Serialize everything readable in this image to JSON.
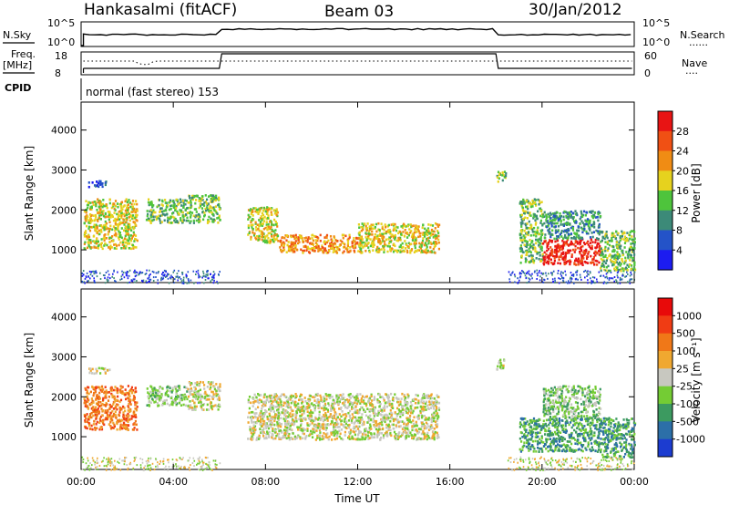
{
  "header": {
    "station": "Hankasalmi (fitACF)",
    "beam": "Beam 03",
    "date": "30/Jan/2012"
  },
  "top_panels": {
    "nsky_label": "N.Sky",
    "nsearch_label": "N.Search",
    "nsky_ticks": [
      "10^5",
      "10^0"
    ],
    "nsearch_ticks": [
      "10^5",
      "10^0"
    ],
    "freq_label": "Freq.",
    "freq_unit": "[MHz]",
    "freq_ticks": [
      "18",
      "8"
    ],
    "nave_label": "Nave",
    "nave_ticks": [
      "60",
      "0"
    ],
    "cpid_label": "CPID",
    "cpid_text": "normal (fast stereo) 153",
    "dotted_legend": "......",
    "nave_dotted": "...."
  },
  "chart_data": [
    {
      "type": "heatmap",
      "name": "power-panel",
      "ylabel": "Slant Range [km]",
      "xlabel": "",
      "x_ticks": [
        "00:00",
        "04:00",
        "08:00",
        "12:00",
        "16:00",
        "20:00",
        "00:00"
      ],
      "x_range_hours": [
        0,
        24
      ],
      "y_ticks": [
        "1000",
        "2000",
        "3000",
        "4000"
      ],
      "y_range_km": [
        180,
        4700
      ],
      "colorbar": {
        "label": "Power [dB]",
        "ticks": [
          "4",
          "8",
          "12",
          "16",
          "20",
          "24",
          "28"
        ],
        "colors": [
          "#1c1cf0",
          "#2453c8",
          "#3c8a78",
          "#4ec43c",
          "#e6d21e",
          "#f08c14",
          "#f05014",
          "#e81414"
        ]
      },
      "scatter_regions": [
        {
          "t0": 0.1,
          "t1": 2.4,
          "r0": 1050,
          "r1": 2300,
          "level": 4
        },
        {
          "t0": 0.3,
          "t1": 1.2,
          "r0": 2600,
          "r1": 2750,
          "level": 1
        },
        {
          "t0": 2.8,
          "t1": 4.6,
          "r0": 1700,
          "r1": 2300,
          "level": 3
        },
        {
          "t0": 4.6,
          "t1": 6.0,
          "r0": 1700,
          "r1": 2400,
          "level": 3
        },
        {
          "t0": 7.2,
          "t1": 8.5,
          "r0": 1200,
          "r1": 2100,
          "level": 4
        },
        {
          "t0": 8.5,
          "t1": 12.0,
          "r0": 950,
          "r1": 1400,
          "level": 5
        },
        {
          "t0": 12.0,
          "t1": 15.5,
          "r0": 950,
          "r1": 1700,
          "level": 4
        },
        {
          "t0": 18.0,
          "t1": 18.4,
          "r0": 2700,
          "r1": 3000,
          "level": 3
        },
        {
          "t0": 19.0,
          "t1": 20.0,
          "r0": 700,
          "r1": 2300,
          "level": 3
        },
        {
          "t0": 20.0,
          "t1": 22.5,
          "r0": 650,
          "r1": 1300,
          "level": 7
        },
        {
          "t0": 20.0,
          "t1": 22.5,
          "r0": 1300,
          "r1": 2000,
          "level": 2
        },
        {
          "t0": 22.5,
          "t1": 24.0,
          "r0": 500,
          "r1": 1500,
          "level": 3
        }
      ]
    },
    {
      "type": "heatmap",
      "name": "velocity-panel",
      "ylabel": "Slant Range [km]",
      "xlabel": "Time UT",
      "x_ticks": [
        "00:00",
        "04:00",
        "08:00",
        "12:00",
        "16:00",
        "20:00",
        "00:00"
      ],
      "x_range_hours": [
        0,
        24
      ],
      "y_ticks": [
        "1000",
        "2000",
        "3000",
        "4000"
      ],
      "y_range_km": [
        180,
        4700
      ],
      "colorbar": {
        "label": "Velocity [m s⁻¹]",
        "ticks": [
          "1000",
          "500",
          "100",
          "25",
          "-25",
          "-100",
          "-500",
          "-1000"
        ],
        "colors": [
          "#1c3cd0",
          "#2c6fa8",
          "#3c9a60",
          "#74cc34",
          "#c8c8c0",
          "#f0a830",
          "#f07818",
          "#f03c14",
          "#e80a0a"
        ]
      },
      "scatter_regions": [
        {
          "t0": 0.1,
          "t1": 2.4,
          "r0": 1200,
          "r1": 2300,
          "level": 6
        },
        {
          "t0": 0.3,
          "t1": 1.2,
          "r0": 2600,
          "r1": 2750,
          "level": 4
        },
        {
          "t0": 2.8,
          "t1": 4.6,
          "r0": 1800,
          "r1": 2300,
          "level": 3
        },
        {
          "t0": 4.6,
          "t1": 6.0,
          "r0": 1700,
          "r1": 2400,
          "level": 4
        },
        {
          "t0": 7.2,
          "t1": 15.5,
          "r0": 950,
          "r1": 2100,
          "level": 4
        },
        {
          "t0": 18.0,
          "t1": 18.4,
          "r0": 2700,
          "r1": 3000,
          "level": 4
        },
        {
          "t0": 19.0,
          "t1": 22.5,
          "r0": 650,
          "r1": 1500,
          "level": 2
        },
        {
          "t0": 20.0,
          "t1": 22.5,
          "r0": 1500,
          "r1": 2300,
          "level": 3
        },
        {
          "t0": 22.5,
          "t1": 24.0,
          "r0": 500,
          "r1": 1500,
          "level": 2
        }
      ]
    }
  ]
}
